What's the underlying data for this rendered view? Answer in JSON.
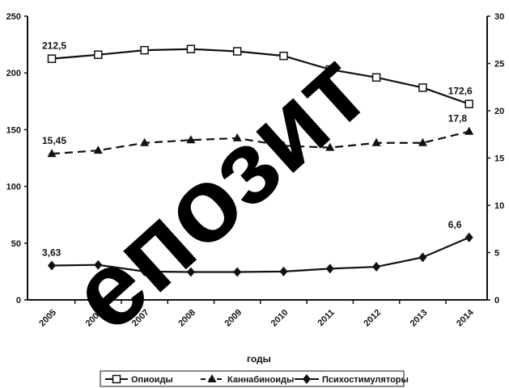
{
  "chart_data": {
    "type": "line",
    "x": [
      "2005",
      "2006",
      "2007",
      "2008",
      "2009",
      "2010",
      "2011",
      "2012",
      "2013",
      "2014"
    ],
    "xlabel": "годы",
    "ylim_left": [
      0,
      250
    ],
    "yticks_left": [
      "0",
      "50",
      "100",
      "150",
      "200",
      "250"
    ],
    "ylim_right": [
      0,
      30
    ],
    "yticks_right": [
      "0",
      "5",
      "10",
      "15",
      "20",
      "25",
      "30"
    ],
    "grid": false,
    "legend_position": "bottom",
    "series": [
      {
        "name": "Опиоиды",
        "axis": "left",
        "marker": "open-square",
        "line": "solid",
        "values": [
          212.5,
          216,
          220,
          221,
          219,
          215,
          203,
          196,
          187,
          172.6
        ],
        "labels": {
          "0": "212,5",
          "9": "172,6"
        }
      },
      {
        "name": "Каннабиноиды",
        "axis": "right",
        "marker": "filled-triangle",
        "line": "dashed",
        "values": [
          15.45,
          15.8,
          16.6,
          16.9,
          17.1,
          16.3,
          16.1,
          16.6,
          16.6,
          17.8
        ],
        "labels": {
          "0": "15,45",
          "9": "17,8"
        }
      },
      {
        "name": "Психостимуляторы",
        "axis": "right",
        "marker": "filled-diamond",
        "line": "solid",
        "values": [
          3.63,
          3.7,
          3.0,
          2.95,
          2.95,
          3.0,
          3.3,
          3.5,
          4.5,
          6.6
        ],
        "labels": {
          "0": "3,63",
          "9": "6,6"
        }
      }
    ]
  },
  "watermark": "епозит"
}
